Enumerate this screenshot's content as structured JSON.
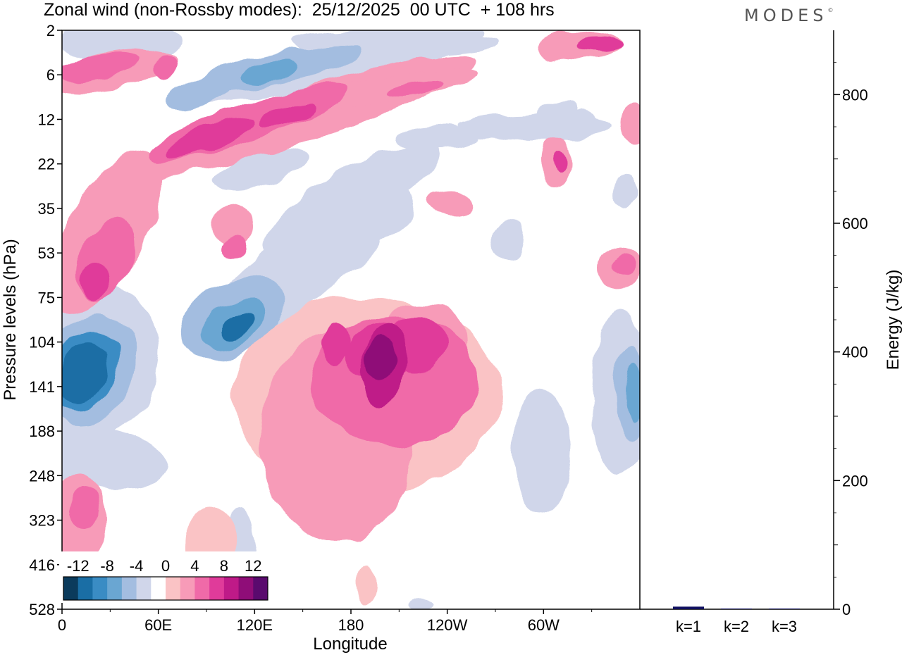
{
  "header": {
    "title": "Zonal wind (non-Rossby modes):  25/12/2025  00 UTC  + 108 hrs",
    "logo": "MODES"
  },
  "chart_data": [
    {
      "type": "heatmap",
      "title": "Zonal wind (non-Rossby modes):  25/12/2025  00 UTC  + 108 hrs",
      "xlabel": "Longitude",
      "ylabel": "Pressure levels (hPa)",
      "x_ticks": [
        "0",
        "60E",
        "120E",
        "180",
        "120W",
        "60W"
      ],
      "x_tick_degrees": [
        0,
        60,
        120,
        180,
        240,
        300
      ],
      "x_range_degrees": [
        0,
        360
      ],
      "y_ticks": [
        "2",
        "6",
        "12",
        "22",
        "35",
        "53",
        "75",
        "104",
        "141",
        "188",
        "248",
        "323",
        "416",
        "528"
      ],
      "colorbar": {
        "labels": [
          "-12",
          "-8",
          "-4",
          "0",
          "4",
          "8",
          "12"
        ],
        "levels": [
          -14,
          -12,
          -10,
          -8,
          -6,
          -4,
          -2,
          2,
          4,
          6,
          8,
          10,
          12,
          14
        ],
        "colors": [
          "#0b3b5c",
          "#1a6ea5",
          "#3a8cc4",
          "#6aa6d2",
          "#a3bde0",
          "#d0d6ea",
          "#ffffff",
          "#fac3c5",
          "#f79bb8",
          "#f06aa8",
          "#e03b9a",
          "#bf1a88",
          "#8f0d78",
          "#5a0a6e"
        ]
      },
      "features": [
        {
          "name": "easterly core near 20E",
          "lon": 20,
          "level_hPa": 141,
          "value": -13
        },
        {
          "name": "easterly core near 110E",
          "lon": 110,
          "level_hPa": 90,
          "value": -12
        },
        {
          "name": "westerly core near 185",
          "lon": 190,
          "level_hPa": 110,
          "value": 13
        },
        {
          "name": "westerly band upper levels",
          "lon": 60,
          "level_hPa": 16,
          "value": 9
        },
        {
          "name": "easterly upper-level band",
          "lon": 120,
          "level_hPa": 6,
          "value": -7
        }
      ]
    },
    {
      "type": "bar",
      "categories": [
        "k=1",
        "k=2",
        "k=3"
      ],
      "values": [
        4,
        1,
        1
      ],
      "ylabel": "Energy (J/kg)",
      "yticks": [
        "0",
        "200",
        "400",
        "600",
        "800"
      ],
      "ylim": [
        0,
        900
      ],
      "bar_color": "#101060"
    }
  ]
}
